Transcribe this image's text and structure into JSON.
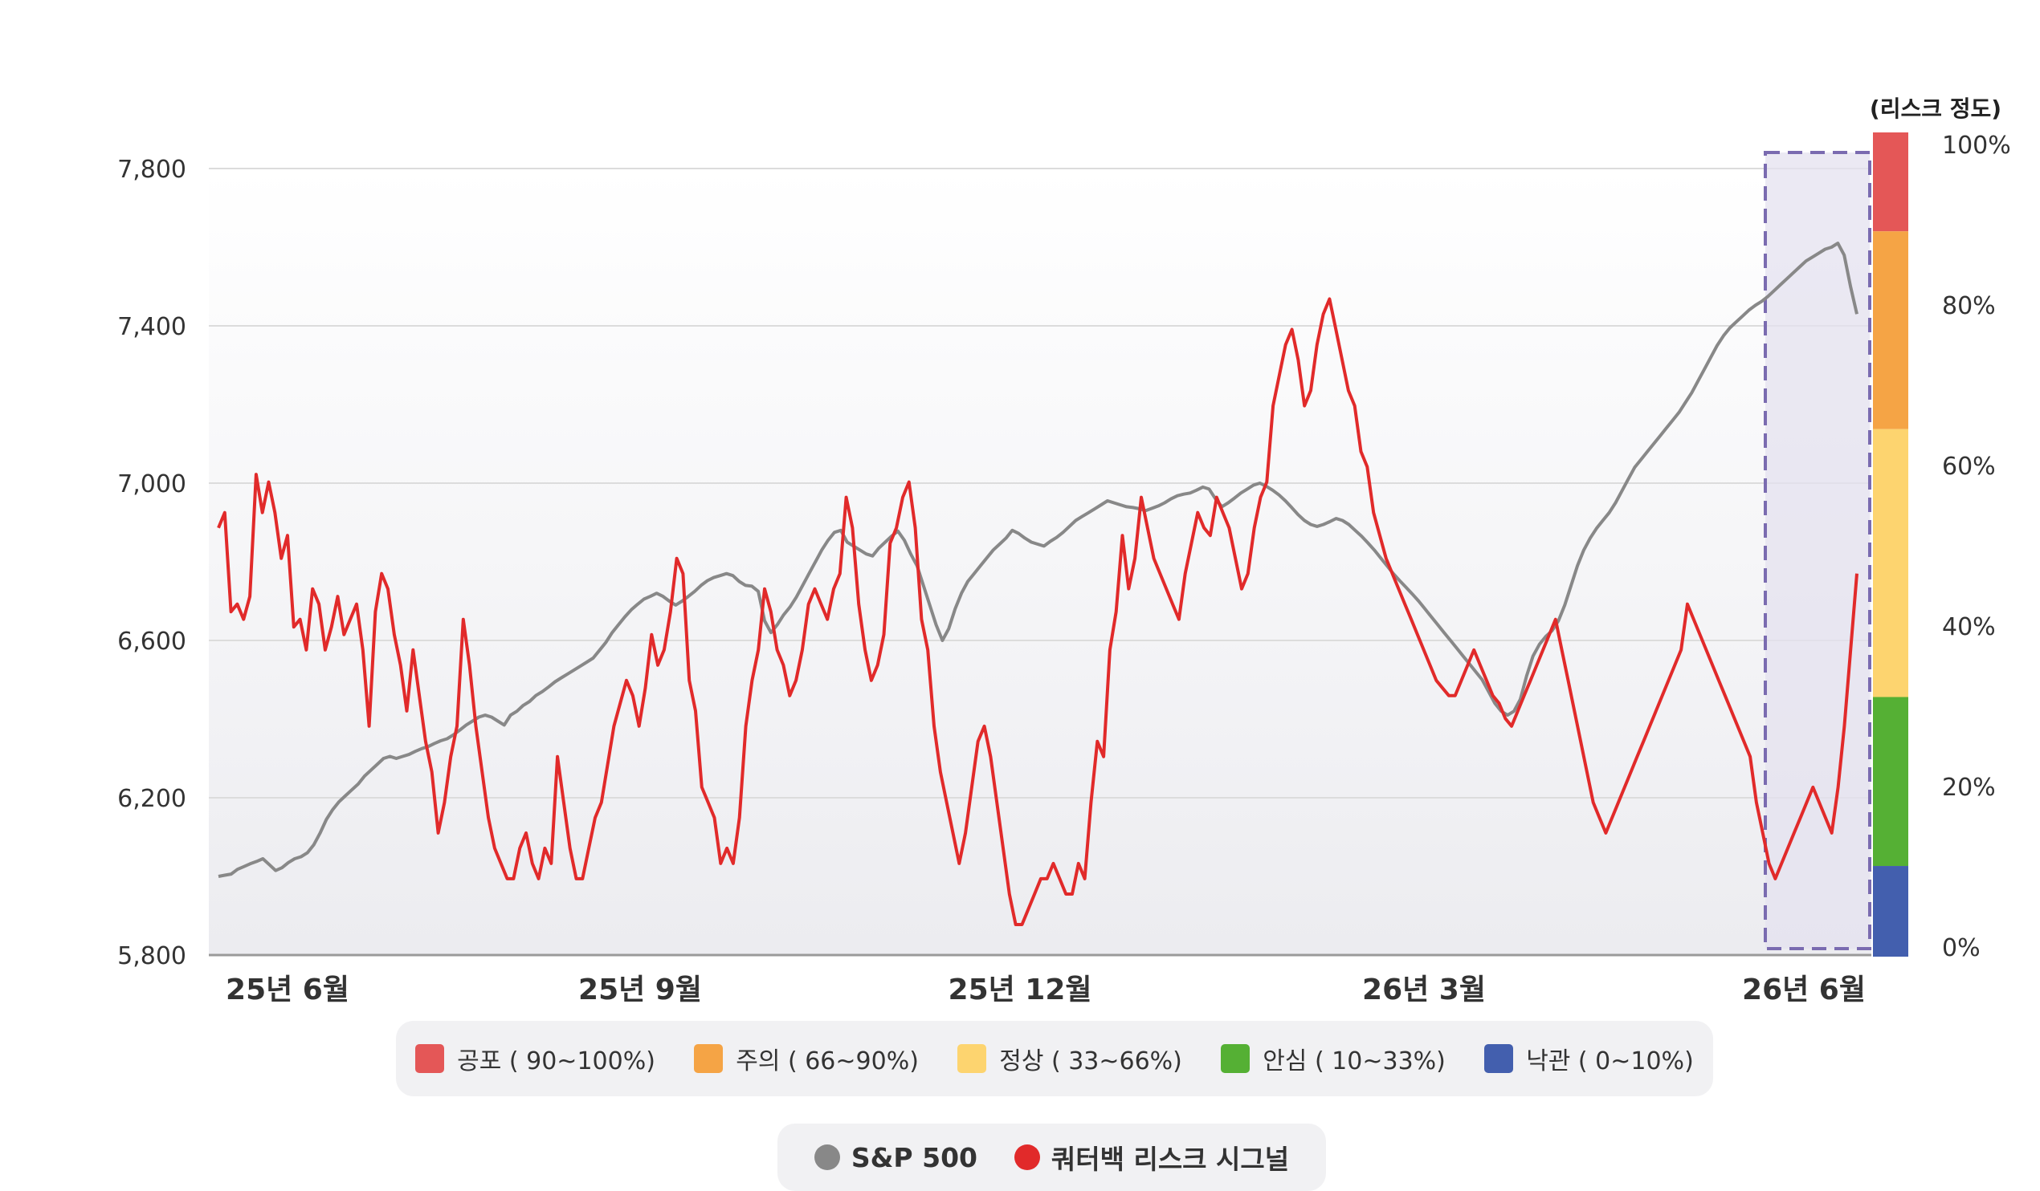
{
  "chart_data": {
    "type": "line",
    "title": "",
    "x_tick_labels": [
      "25년 6월",
      "25년 9월",
      "25년 12월",
      "26년 3월",
      "26년 6월"
    ],
    "y_left": {
      "ticks": [
        "7,800",
        "7,400",
        "7,000",
        "6,600",
        "6,200",
        "5,800"
      ],
      "range": [
        5800,
        7800
      ]
    },
    "y_right": {
      "title": "(리스크 정도)",
      "ticks": [
        "100%",
        "80%",
        "60%",
        "40%",
        "20%",
        "0%"
      ],
      "range": [
        0,
        100
      ]
    },
    "risk_bands": [
      {
        "label": "공포 ( 90~100%)",
        "from": 88,
        "to": 100,
        "color": "#e45757"
      },
      {
        "label": "주의 ( 66~90%)",
        "from": 64,
        "to": 88,
        "color": "#f5a445"
      },
      {
        "label": "정상 ( 33~66%)",
        "from": 31.5,
        "to": 64,
        "color": "#fdd46f"
      },
      {
        "label": "안심 ( 10~33%)",
        "from": 11,
        "to": 31.5,
        "color": "#55b034"
      },
      {
        "label": "낙관 ( 0~10%)",
        "from": 0,
        "to": 11,
        "color": "#435fae"
      }
    ],
    "series": [
      {
        "name": "S&P 500",
        "color": "#888888",
        "values": [
          6000,
          6003,
          6006,
          6018,
          6025,
          6032,
          6038,
          6045,
          6030,
          6015,
          6022,
          6035,
          6045,
          6050,
          6060,
          6080,
          6110,
          6145,
          6170,
          6190,
          6205,
          6220,
          6235,
          6255,
          6270,
          6285,
          6300,
          6305,
          6300,
          6305,
          6310,
          6318,
          6325,
          6330,
          6338,
          6345,
          6350,
          6360,
          6372,
          6385,
          6395,
          6405,
          6410,
          6405,
          6395,
          6385,
          6410,
          6420,
          6435,
          6445,
          6460,
          6470,
          6482,
          6495,
          6505,
          6515,
          6525,
          6535,
          6545,
          6555,
          6575,
          6595,
          6620,
          6640,
          6660,
          6678,
          6692,
          6705,
          6712,
          6720,
          6712,
          6700,
          6690,
          6700,
          6712,
          6725,
          6740,
          6752,
          6760,
          6765,
          6770,
          6765,
          6750,
          6740,
          6738,
          6725,
          6650,
          6620,
          6640,
          6665,
          6685,
          6710,
          6740,
          6770,
          6800,
          6830,
          6855,
          6875,
          6880,
          6850,
          6840,
          6830,
          6820,
          6815,
          6835,
          6850,
          6865,
          6878,
          6855,
          6820,
          6790,
          6740,
          6690,
          6640,
          6600,
          6630,
          6680,
          6720,
          6750,
          6770,
          6790,
          6810,
          6830,
          6845,
          6860,
          6880,
          6872,
          6860,
          6850,
          6845,
          6840,
          6852,
          6862,
          6875,
          6890,
          6905,
          6915,
          6925,
          6935,
          6945,
          6955,
          6950,
          6945,
          6940,
          6938,
          6935,
          6930,
          6936,
          6942,
          6950,
          6960,
          6968,
          6972,
          6975,
          6982,
          6990,
          6985,
          6960,
          6940,
          6950,
          6962,
          6975,
          6985,
          6995,
          7000,
          6992,
          6982,
          6970,
          6955,
          6938,
          6920,
          6905,
          6895,
          6890,
          6895,
          6902,
          6910,
          6905,
          6895,
          6880,
          6865,
          6848,
          6830,
          6810,
          6790,
          6770,
          6752,
          6735,
          6718,
          6700,
          6680,
          6660,
          6640,
          6620,
          6600,
          6580,
          6560,
          6540,
          6520,
          6500,
          6470,
          6440,
          6420,
          6410,
          6420,
          6450,
          6510,
          6560,
          6590,
          6610,
          6625,
          6650,
          6690,
          6740,
          6790,
          6830,
          6860,
          6885,
          6905,
          6925,
          6950,
          6980,
          7010,
          7040,
          7060,
          7080,
          7100,
          7120,
          7140,
          7160,
          7180,
          7205,
          7230,
          7260,
          7290,
          7320,
          7350,
          7375,
          7395,
          7410,
          7425,
          7440,
          7452,
          7462,
          7475,
          7490,
          7505,
          7520,
          7535,
          7550,
          7565,
          7575,
          7585,
          7595,
          7600,
          7610,
          7580,
          7500,
          7430
        ]
      },
      {
        "name": "쿼터백 리스크 시그널",
        "color": "#e12a2a",
        "values": [
          56,
          58,
          45,
          46,
          44,
          47,
          63,
          58,
          62,
          58,
          52,
          55,
          43,
          44,
          40,
          48,
          46,
          40,
          43,
          47,
          42,
          44,
          46,
          40,
          30,
          45,
          50,
          48,
          42,
          38,
          32,
          40,
          34,
          28,
          24,
          16,
          20,
          26,
          30,
          44,
          38,
          30,
          24,
          18,
          14,
          12,
          10,
          10,
          14,
          16,
          12,
          10,
          14,
          12,
          26,
          20,
          14,
          10,
          10,
          14,
          18,
          20,
          25,
          30,
          33,
          36,
          34,
          30,
          35,
          42,
          38,
          40,
          45,
          52,
          50,
          36,
          32,
          22,
          20,
          18,
          12,
          14,
          12,
          18,
          30,
          36,
          40,
          48,
          45,
          40,
          38,
          34,
          36,
          40,
          46,
          48,
          46,
          44,
          48,
          50,
          60,
          56,
          46,
          40,
          36,
          38,
          42,
          54,
          56,
          60,
          62,
          56,
          44,
          40,
          30,
          24,
          20,
          16,
          12,
          16,
          22,
          28,
          30,
          26,
          20,
          14,
          8,
          4,
          4,
          6,
          8,
          10,
          10,
          12,
          10,
          8,
          8,
          12,
          10,
          20,
          28,
          26,
          40,
          45,
          55,
          48,
          52,
          60,
          56,
          52,
          50,
          48,
          46,
          44,
          50,
          54,
          58,
          56,
          55,
          60,
          58,
          56,
          52,
          48,
          50,
          56,
          60,
          62,
          72,
          76,
          80,
          82,
          78,
          72,
          74,
          80,
          84,
          86,
          82,
          78,
          74,
          72,
          66,
          64,
          58,
          55,
          52,
          50,
          48,
          46,
          44,
          42,
          40,
          38,
          36,
          35,
          34,
          34,
          36,
          38,
          40,
          38,
          36,
          34,
          33,
          31,
          30,
          32,
          34,
          36,
          38,
          40,
          42,
          44,
          40,
          36,
          32,
          28,
          24,
          20,
          18,
          16,
          18,
          20,
          22,
          24,
          26,
          28,
          30,
          32,
          34,
          36,
          38,
          40,
          46,
          44,
          42,
          40,
          38,
          36,
          34,
          32,
          30,
          28,
          26,
          20,
          16,
          12,
          10,
          12,
          14,
          16,
          18,
          20,
          22,
          20,
          18,
          16,
          22,
          30,
          40,
          50
        ]
      }
    ]
  },
  "legend": {
    "bands": [
      "공포 ( 90~100%)",
      "주의 ( 66~90%)",
      "정상 ( 33~66%)",
      "안심 ( 10~33%)",
      "낙관 ( 0~10%)"
    ],
    "series": [
      "S&P 500",
      "쿼터백 리스크 시그널"
    ]
  }
}
